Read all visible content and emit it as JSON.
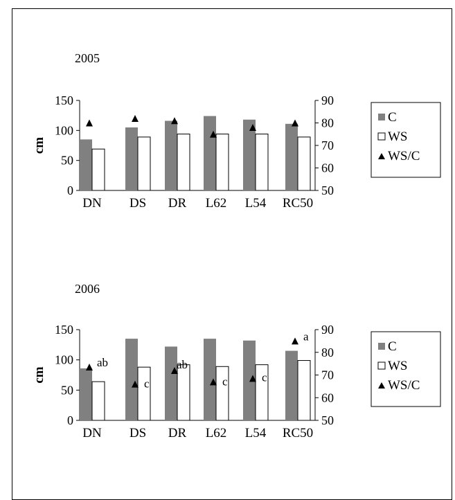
{
  "chart_data": [
    {
      "type": "bar",
      "title": "2005",
      "ylabel": "cm",
      "ylim": [
        0,
        150
      ],
      "yticks": [
        0,
        50,
        100,
        150
      ],
      "y2lim": [
        50,
        90
      ],
      "y2ticks": [
        50,
        60,
        70,
        80,
        90
      ],
      "categories": [
        "DN",
        "DS",
        "DR",
        "L62",
        "L54",
        "RC50"
      ],
      "series": [
        {
          "name": "C",
          "axis": "left",
          "style": "bar",
          "color": "#808080",
          "values": [
            85,
            105,
            116,
            124,
            118,
            111
          ]
        },
        {
          "name": "WS",
          "axis": "left",
          "style": "bar",
          "color": "#ffffff",
          "values": [
            69,
            89,
            94,
            94,
            94,
            89
          ]
        },
        {
          "name": "WS/C",
          "axis": "right",
          "style": "marker",
          "marker": "triangle",
          "values": [
            80,
            82,
            81,
            75,
            78,
            80
          ]
        }
      ],
      "legend": "right"
    },
    {
      "type": "bar",
      "title": "2006",
      "ylabel": "cm",
      "ylim": [
        0,
        150
      ],
      "yticks": [
        0,
        50,
        100,
        150
      ],
      "y2lim": [
        50,
        90
      ],
      "y2ticks": [
        50,
        60,
        70,
        80,
        90
      ],
      "categories": [
        "DN",
        "DS",
        "DR",
        "L62",
        "L54",
        "RC50"
      ],
      "series": [
        {
          "name": "C",
          "axis": "left",
          "style": "bar",
          "color": "#808080",
          "values": [
            86,
            135,
            122,
            135,
            132,
            115
          ]
        },
        {
          "name": "WS",
          "axis": "left",
          "style": "bar",
          "color": "#ffffff",
          "values": [
            64,
            88,
            92,
            89,
            92,
            99
          ]
        },
        {
          "name": "WS/C",
          "axis": "right",
          "style": "marker",
          "marker": "triangle",
          "values": [
            73.5,
            66,
            72,
            67,
            68.5,
            85
          ]
        }
      ],
      "annotations": [
        "ab",
        "c",
        "ab",
        "c",
        "c",
        "a"
      ],
      "legend": "right"
    }
  ]
}
